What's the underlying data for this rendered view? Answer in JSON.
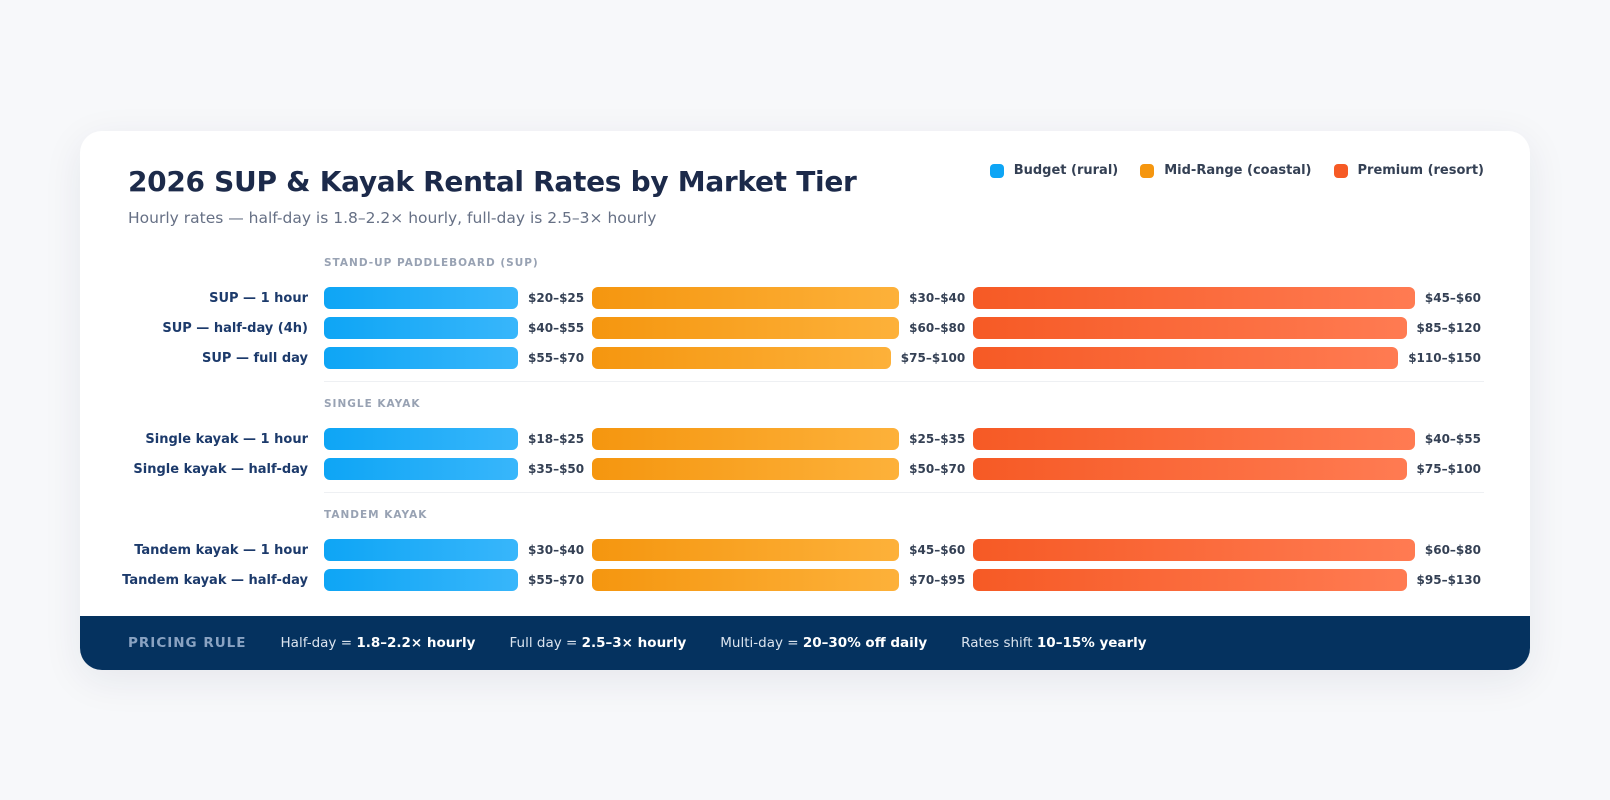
{
  "title": "2026 SUP & Kayak Rental Rates by Market Tier",
  "subtitle": "Hourly rates — half-day is 1.8–2.2× hourly, full-day is 2.5–3× hourly",
  "legend": [
    {
      "label": "Budget (rural)",
      "color": "#0ea5f5"
    },
    {
      "label": "Mid-Range (coastal)",
      "color": "#f5960f"
    },
    {
      "label": "Premium (resort)",
      "color": "#f65a25"
    }
  ],
  "chart_data": {
    "type": "bar",
    "title": "2026 SUP & Kayak Rental Rates by Market Tier",
    "series_names": [
      "Budget (rural)",
      "Mid-Range (coastal)",
      "Premium (resort)"
    ],
    "sections": [
      {
        "title": "STAND-UP PADDLEBOARD (SUP)",
        "rows": [
          {
            "label": "SUP — 1 hour",
            "values": [
              "$20–$25",
              "$30–$40",
              "$45–$60"
            ]
          },
          {
            "label": "SUP — half-day (4h)",
            "values": [
              "$40–$55",
              "$60–$80",
              "$85–$120"
            ]
          },
          {
            "label": "SUP — full day",
            "values": [
              "$55–$70",
              "$75–$100",
              "$110–$150"
            ]
          }
        ]
      },
      {
        "title": "SINGLE KAYAK",
        "rows": [
          {
            "label": "Single kayak — 1 hour",
            "values": [
              "$18–$25",
              "$25–$35",
              "$40–$55"
            ]
          },
          {
            "label": "Single kayak — half-day",
            "values": [
              "$35–$50",
              "$50–$70",
              "$75–$100"
            ]
          }
        ]
      },
      {
        "title": "TANDEM KAYAK",
        "rows": [
          {
            "label": "Tandem kayak — 1 hour",
            "values": [
              "$30–$40",
              "$45–$60",
              "$60–$80"
            ]
          },
          {
            "label": "Tandem kayak — half-day",
            "values": [
              "$55–$70",
              "$70–$95",
              "$95–$130"
            ]
          }
        ]
      }
    ]
  },
  "footer": {
    "label": "PRICING RULE",
    "items": [
      {
        "text": "Half-day =",
        "bold": "1.8–2.2× hourly"
      },
      {
        "text": "Full day =",
        "bold": "2.5–3× hourly"
      },
      {
        "text": "Multi-day =",
        "bold": "20–30% off daily"
      },
      {
        "text": "Rates shift",
        "bold": "10–15% yearly"
      }
    ]
  }
}
